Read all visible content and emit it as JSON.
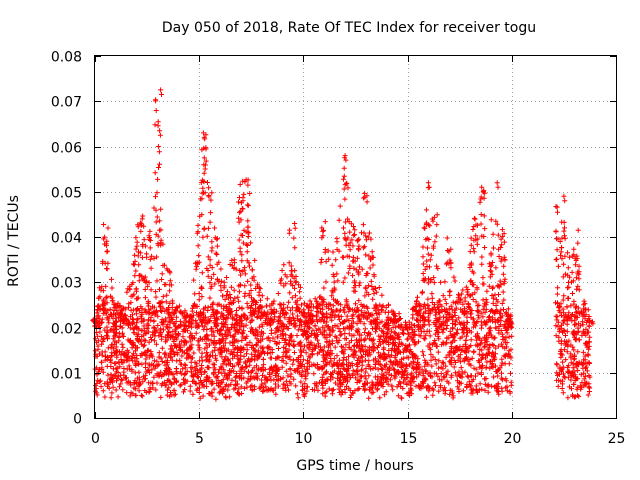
{
  "chart_data": {
    "type": "scatter",
    "title": "Day 050 of 2018, Rate Of TEC Index for receiver togu",
    "xlabel": "GPS time / hours",
    "ylabel": "ROTI / TECUs",
    "xlim": [
      0,
      25
    ],
    "ylim": [
      0,
      0.08
    ],
    "xticks": [
      0,
      5,
      10,
      15,
      20,
      25
    ],
    "xtick_labels": [
      "0",
      "5",
      "10",
      "15",
      "20",
      "25"
    ],
    "yticks": [
      0,
      0.01,
      0.02,
      0.03,
      0.04,
      0.05,
      0.06,
      0.07,
      0.08
    ],
    "ytick_labels": [
      "0",
      "0.01",
      "0.02",
      "0.03",
      "0.04",
      "0.05",
      "0.06",
      "0.07",
      "0.08"
    ],
    "grid": true,
    "marker": "+",
    "point_color": "#ff0000",
    "series": [
      {
        "name": "ROTI",
        "envelope_hours": [
          0,
          0.3,
          0.5,
          0.9,
          1.3,
          1.7,
          2.0,
          2.3,
          2.6,
          3.0,
          3.2,
          3.5,
          3.8,
          4.2,
          4.6,
          5.0,
          5.2,
          5.5,
          5.8,
          6.2,
          6.6,
          7.0,
          7.3,
          7.6,
          8.0,
          8.5,
          9.0,
          9.5,
          9.8,
          10.2,
          10.6,
          11.0,
          11.5,
          12.0,
          12.3,
          12.6,
          13.0,
          13.5,
          14.0,
          14.5,
          15.0,
          15.5,
          16.0,
          16.3,
          16.6,
          17.0,
          17.4,
          17.8,
          18.2,
          18.6,
          19.0,
          19.3,
          19.6,
          19.9,
          22.2,
          22.5,
          22.8,
          23.1,
          23.4,
          23.8
        ],
        "envelope_peak_tecus": [
          0.022,
          0.032,
          0.043,
          0.026,
          0.025,
          0.03,
          0.043,
          0.045,
          0.042,
          0.072,
          0.042,
          0.033,
          0.026,
          0.024,
          0.023,
          0.045,
          0.063,
          0.052,
          0.04,
          0.03,
          0.035,
          0.052,
          0.053,
          0.035,
          0.03,
          0.026,
          0.034,
          0.046,
          0.03,
          0.025,
          0.026,
          0.044,
          0.035,
          0.058,
          0.046,
          0.04,
          0.051,
          0.03,
          0.025,
          0.023,
          0.02,
          0.028,
          0.052,
          0.046,
          0.03,
          0.04,
          0.028,
          0.03,
          0.045,
          0.052,
          0.045,
          0.045,
          0.042,
          0.022,
          0.048,
          0.046,
          0.036,
          0.042,
          0.026,
          0.022
        ],
        "typical_range_tecus": [
          0.005,
          0.025
        ],
        "outlier_peaks": [
          {
            "x": 3.15,
            "y": 0.0725
          },
          {
            "x": 3.1,
            "y": 0.0635
          },
          {
            "x": 5.2,
            "y": 0.063
          },
          {
            "x": 12.0,
            "y": 0.058
          },
          {
            "x": 16.0,
            "y": 0.052
          },
          {
            "x": 19.3,
            "y": 0.052
          },
          {
            "x": 22.5,
            "y": 0.049
          }
        ],
        "data_gap_hours": [
          20.0,
          22.1
        ]
      }
    ]
  }
}
